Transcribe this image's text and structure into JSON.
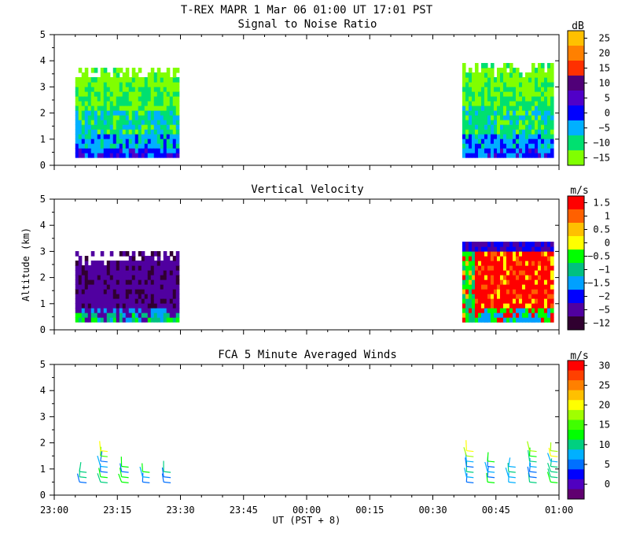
{
  "header": {
    "title": "T-REX   MAPR   1 Mar 06   01:00 UT   17:01   PST"
  },
  "chart_data": [
    {
      "type": "heatmap",
      "title": "Signal to Noise Ratio",
      "ylabel": "",
      "ylim": [
        0,
        5
      ],
      "yticks": [
        "0",
        "1",
        "2",
        "3",
        "4",
        "5"
      ],
      "colorbar": {
        "unit": "dB",
        "labels": [
          "25",
          "20",
          "15",
          "10",
          "5",
          "0",
          "−5",
          "−10",
          "−15"
        ],
        "colors": [
          "#ffc000",
          "#ff8000",
          "#ff3000",
          "#500078",
          "#5000c8",
          "#0000ff",
          "#00b0ff",
          "#00e070",
          "#80ff00"
        ]
      },
      "data_blocks": [
        {
          "start": "23:05",
          "end": "23:29",
          "bottom_km": 0.3,
          "top_km": 3.9
        },
        {
          "start": "00:37",
          "end": "00:58",
          "bottom_km": 0.3,
          "top_km": 4.0
        }
      ]
    },
    {
      "type": "heatmap",
      "title": "Vertical Velocity",
      "ylabel": "Altitude (km)",
      "ylim": [
        0,
        5
      ],
      "yticks": [
        "0",
        "1",
        "2",
        "3",
        "4",
        "5"
      ],
      "colorbar": {
        "unit": "m/s",
        "labels": [
          "1.5",
          "1",
          "0.5",
          "0",
          "−0.5",
          "−1",
          "−1.5",
          "−2",
          "−5",
          "−12"
        ],
        "colors": [
          "#ff0000",
          "#ff6000",
          "#ffc000",
          "#ffff00",
          "#00ff00",
          "#00c080",
          "#00a0ff",
          "#0000ff",
          "#5000a0",
          "#300030"
        ]
      },
      "data_blocks": [
        {
          "start": "23:05",
          "end": "23:29",
          "bottom_km": 0.3,
          "top_km": 3.1
        },
        {
          "start": "00:37",
          "end": "00:58",
          "bottom_km": 0.3,
          "top_km": 3.5
        }
      ]
    },
    {
      "type": "scatter",
      "title": "FCA 5 Minute Averaged Winds",
      "ylim": [
        0,
        5
      ],
      "yticks": [
        "0",
        "1",
        "2",
        "3",
        "4",
        "5"
      ],
      "colorbar": {
        "unit": "m/s",
        "labels": [
          "30",
          "25",
          "20",
          "15",
          "10",
          "5",
          "0"
        ],
        "colors": [
          "#ff0000",
          "#ff4000",
          "#ff8000",
          "#ffc000",
          "#ffff00",
          "#a0ff00",
          "#40ff00",
          "#00ff00",
          "#00d080",
          "#00b0ff",
          "#0070ff",
          "#0000ff",
          "#5000c0",
          "#600070"
        ]
      },
      "barb_times": [
        "23:06",
        "23:11",
        "23:16",
        "23:21",
        "23:26",
        "00:38",
        "00:43",
        "00:48",
        "00:53",
        "00:58"
      ],
      "barb_heights_km": [
        0.5,
        0.7,
        0.9,
        1.1,
        1.3,
        1.5,
        1.7,
        1.9
      ]
    }
  ],
  "x_axis": {
    "label": "UT  (PST + 8)",
    "range": [
      "23:00",
      "01:00"
    ],
    "ticks": [
      "23:00",
      "23:15",
      "23:30",
      "23:45",
      "00:00",
      "00:15",
      "00:30",
      "00:45",
      "01:00"
    ]
  }
}
